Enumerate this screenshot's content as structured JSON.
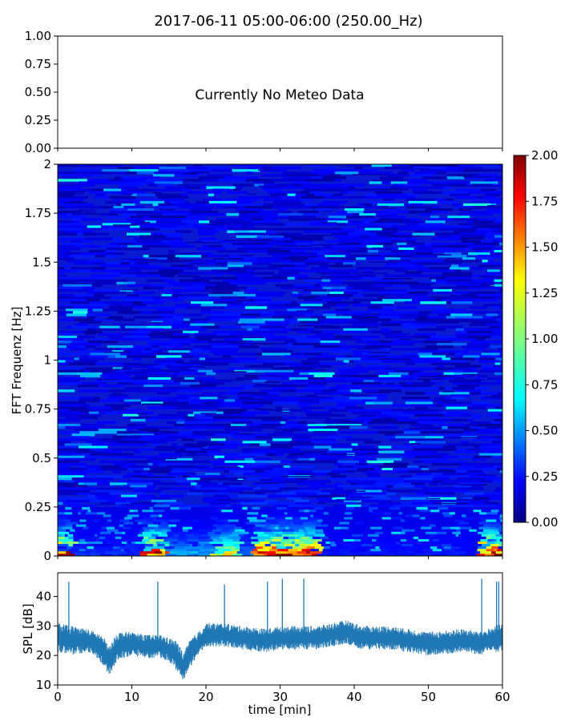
{
  "figure": {
    "title": "2017-06-11 05:00-06:00 (250.00_Hz)"
  },
  "chart_data": [
    {
      "type": "line",
      "panel": "meteo",
      "annotation": "Currently No Meteo Data",
      "ylim": [
        0,
        1
      ],
      "yticks": [
        "0.00",
        "0.25",
        "0.50",
        "0.75",
        "1.00"
      ],
      "xlim": [
        0,
        60
      ],
      "grid": false
    },
    {
      "type": "heatmap",
      "panel": "spectrogram",
      "ylabel": "FFT Frequenz [Hz]",
      "ylim": [
        0,
        2
      ],
      "yticks": [
        "0",
        "0.25",
        "0.5",
        "0.75",
        "1",
        "1.25",
        "1.5",
        "1.75",
        "2"
      ],
      "xlim": [
        0,
        60
      ],
      "colormap": "jet",
      "colorbar": {
        "min": 0,
        "max": 2,
        "ticks": [
          "0.00",
          "0.25",
          "0.50",
          "0.75",
          "1.00",
          "1.25",
          "1.50",
          "1.75",
          "2.00"
        ]
      },
      "background_level": 0.2,
      "low_freq_band_segments": [
        {
          "x0": 0,
          "x1": 2,
          "level": 2.0
        },
        {
          "x0": 2,
          "x1": 11.5,
          "level": 0.35
        },
        {
          "x0": 11.5,
          "x1": 14.8,
          "level": 1.9
        },
        {
          "x0": 14.8,
          "x1": 21,
          "level": 0.6
        },
        {
          "x0": 21,
          "x1": 24.5,
          "level": 1.3
        },
        {
          "x0": 24.5,
          "x1": 26.5,
          "level": 0.5
        },
        {
          "x0": 26.5,
          "x1": 35.5,
          "level": 2.0
        },
        {
          "x0": 35.5,
          "x1": 57,
          "level": 0.3
        },
        {
          "x0": 57,
          "x1": 60,
          "level": 2.0
        }
      ],
      "faint_lines": [
        {
          "x0": 36,
          "x1": 41,
          "y": 0.67,
          "level": 0.7
        },
        {
          "x0": 8,
          "x1": 13,
          "y": 0.62,
          "level": 0.5
        }
      ]
    },
    {
      "type": "line",
      "panel": "spl",
      "xlabel": "time [min]",
      "ylabel": "SPL [dB]",
      "xlim": [
        0,
        60
      ],
      "ylim": [
        10,
        48
      ],
      "xticks": [
        "0",
        "10",
        "20",
        "30",
        "40",
        "50",
        "60"
      ],
      "yticks": [
        "10",
        "20",
        "30",
        "40"
      ],
      "color": "#1f77b4",
      "series": [
        {
          "x": [
            0,
            2,
            4,
            5,
            6,
            7,
            8,
            10,
            12,
            14,
            15,
            16,
            17,
            18,
            19,
            20,
            22,
            25,
            28,
            30,
            33,
            35,
            37,
            39,
            41,
            45,
            50,
            55,
            57,
            58,
            60
          ],
          "mean": [
            26,
            25,
            25,
            24,
            22,
            18,
            23,
            24,
            23,
            23,
            22,
            20,
            16,
            21,
            24,
            27,
            27,
            26,
            25,
            26,
            26,
            26,
            27,
            28,
            26,
            26,
            24,
            25,
            24,
            25,
            26
          ],
          "spread": [
            5,
            5,
            4,
            4,
            5,
            5,
            5,
            4,
            4,
            4,
            4,
            5,
            5,
            5,
            4,
            4,
            4,
            4,
            4,
            4,
            4,
            4,
            4,
            4,
            4,
            4,
            4,
            4,
            4,
            4,
            5
          ]
        }
      ],
      "spikes": [
        {
          "x": 1.5,
          "y": 45
        },
        {
          "x": 13.5,
          "y": 45
        },
        {
          "x": 22.5,
          "y": 44
        },
        {
          "x": 28.3,
          "y": 45
        },
        {
          "x": 30.3,
          "y": 46
        },
        {
          "x": 33.2,
          "y": 46
        },
        {
          "x": 57.2,
          "y": 46
        },
        {
          "x": 59.2,
          "y": 45
        },
        {
          "x": 59.5,
          "y": 45
        }
      ]
    }
  ]
}
